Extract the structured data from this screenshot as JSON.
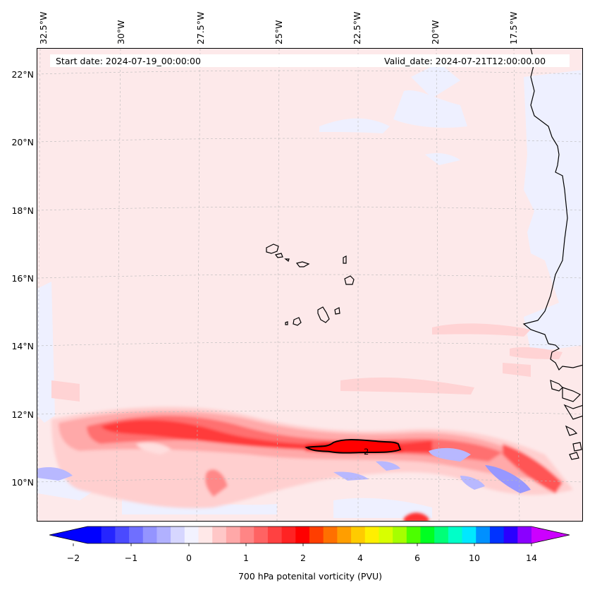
{
  "header": {
    "start_date": "Start date: 2024-07-19_00:00:00",
    "valid_date": "Valid_date: 2024-07-21T12:00:00.00"
  },
  "axes": {
    "longitude_labels": [
      "32.5°W",
      "30°W",
      "27.5°W",
      "25°W",
      "22.5°W",
      "20°W",
      "17.5°W"
    ],
    "latitude_labels": [
      "22°N",
      "20°N",
      "18°N",
      "16°N",
      "14°N",
      "12°N",
      "10°N"
    ]
  },
  "contour_label": "2",
  "colorbar": {
    "ticks": [
      "−2",
      "−1",
      "0",
      "1",
      "2",
      "4",
      "6",
      "10",
      "14"
    ],
    "label": "700 hPa potenital vorticity (PVU)",
    "colors": [
      "#0000ff",
      "#2525ff",
      "#4a4aff",
      "#6f6fff",
      "#9494ff",
      "#b1b1ff",
      "#d6d6ff",
      "#f2f2ff",
      "#ffe8e8",
      "#ffc7c7",
      "#ffa8a8",
      "#ff8585",
      "#ff6363",
      "#ff4141",
      "#ff2323",
      "#ff0000",
      "#ff3e00",
      "#ff7000",
      "#ff9e00",
      "#ffcb00",
      "#ffef00",
      "#d8ff00",
      "#a6ff00",
      "#4cff00",
      "#00ff22",
      "#00ff78",
      "#00ffc8",
      "#00e8ff",
      "#0090ff",
      "#0033ff",
      "#2a00ff",
      "#8a00ff"
    ],
    "under_color": "#0000ff",
    "over_color": "#cc00ff"
  },
  "colors": {
    "background_field": "#fde9ea",
    "coastline": "#000000"
  }
}
